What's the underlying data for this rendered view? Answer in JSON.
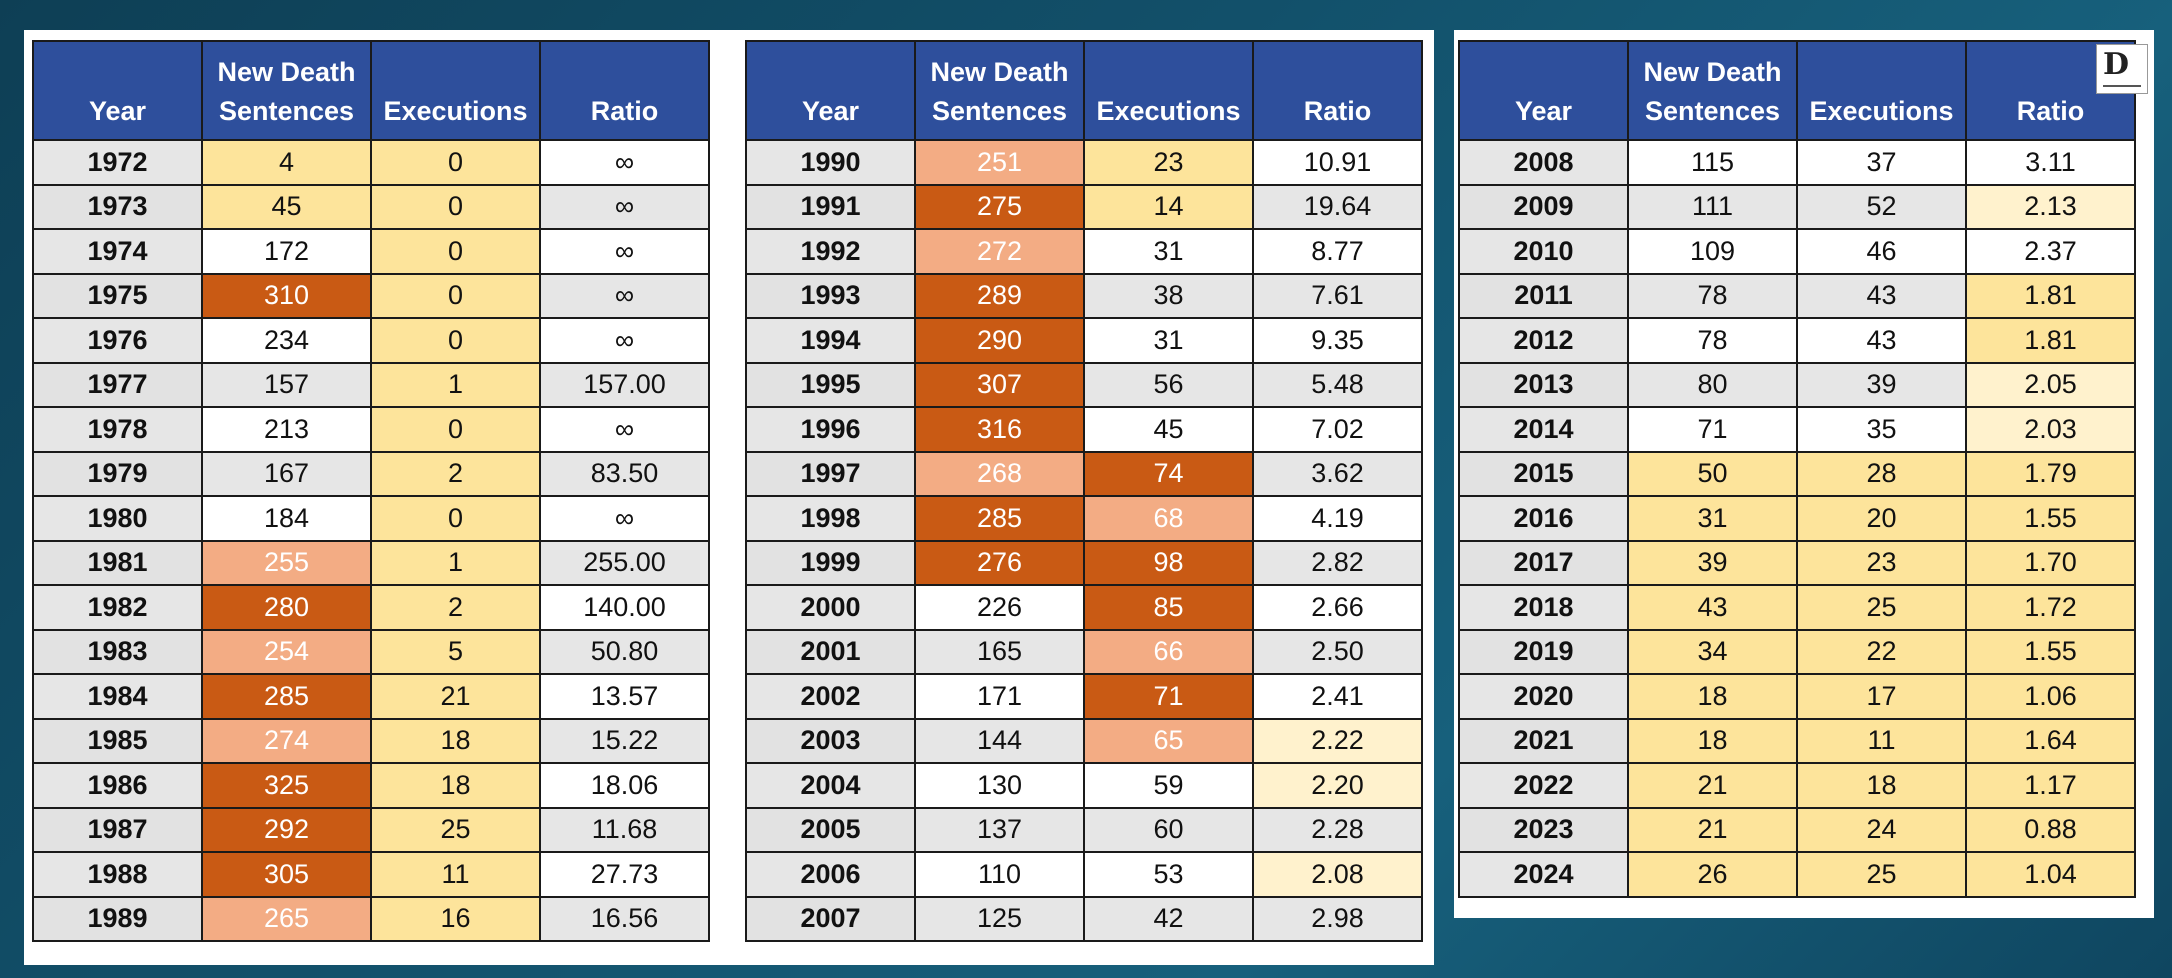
{
  "headers": {
    "year": "Year",
    "new_death_sentences": "New Death Sentences",
    "executions": "Executions",
    "ratio": "Ratio"
  },
  "colors": {
    "header_blue": "#2e4f9c",
    "dark_orange": "#c95a14",
    "light_orange": "#f3ac84",
    "yellow": "#fde49b",
    "light_yellow": "#fff2cd",
    "white": "#ffffff",
    "gray": "#e6e6e6"
  },
  "logo": {
    "icon": "dpi-logo-icon",
    "text": "D"
  },
  "tables": [
    {
      "rows": [
        {
          "year": "1972",
          "sentences": "4",
          "executions": "0",
          "ratio": "∞",
          "s_color": "y",
          "e_color": "y",
          "r_color": "w"
        },
        {
          "year": "1973",
          "sentences": "45",
          "executions": "0",
          "ratio": "∞",
          "s_color": "y",
          "e_color": "y",
          "r_color": "g"
        },
        {
          "year": "1974",
          "sentences": "172",
          "executions": "0",
          "ratio": "∞",
          "s_color": "w",
          "e_color": "y",
          "r_color": "w"
        },
        {
          "year": "1975",
          "sentences": "310",
          "executions": "0",
          "ratio": "∞",
          "s_color": "o",
          "e_color": "y",
          "r_color": "g"
        },
        {
          "year": "1976",
          "sentences": "234",
          "executions": "0",
          "ratio": "∞",
          "s_color": "w",
          "e_color": "y",
          "r_color": "w"
        },
        {
          "year": "1977",
          "sentences": "157",
          "executions": "1",
          "ratio": "157.00",
          "s_color": "g",
          "e_color": "y",
          "r_color": "g"
        },
        {
          "year": "1978",
          "sentences": "213",
          "executions": "0",
          "ratio": "∞",
          "s_color": "w",
          "e_color": "y",
          "r_color": "w"
        },
        {
          "year": "1979",
          "sentences": "167",
          "executions": "2",
          "ratio": "83.50",
          "s_color": "g",
          "e_color": "y",
          "r_color": "g"
        },
        {
          "year": "1980",
          "sentences": "184",
          "executions": "0",
          "ratio": "∞",
          "s_color": "w",
          "e_color": "y",
          "r_color": "w"
        },
        {
          "year": "1981",
          "sentences": "255",
          "executions": "1",
          "ratio": "255.00",
          "s_color": "p",
          "e_color": "y",
          "r_color": "g"
        },
        {
          "year": "1982",
          "sentences": "280",
          "executions": "2",
          "ratio": "140.00",
          "s_color": "o",
          "e_color": "y",
          "r_color": "w"
        },
        {
          "year": "1983",
          "sentences": "254",
          "executions": "5",
          "ratio": "50.80",
          "s_color": "p",
          "e_color": "y",
          "r_color": "g"
        },
        {
          "year": "1984",
          "sentences": "285",
          "executions": "21",
          "ratio": "13.57",
          "s_color": "o",
          "e_color": "y",
          "r_color": "w"
        },
        {
          "year": "1985",
          "sentences": "274",
          "executions": "18",
          "ratio": "15.22",
          "s_color": "p",
          "e_color": "y",
          "r_color": "g"
        },
        {
          "year": "1986",
          "sentences": "325",
          "executions": "18",
          "ratio": "18.06",
          "s_color": "o",
          "e_color": "y",
          "r_color": "w"
        },
        {
          "year": "1987",
          "sentences": "292",
          "executions": "25",
          "ratio": "11.68",
          "s_color": "o",
          "e_color": "y",
          "r_color": "g"
        },
        {
          "year": "1988",
          "sentences": "305",
          "executions": "11",
          "ratio": "27.73",
          "s_color": "o",
          "e_color": "y",
          "r_color": "w"
        },
        {
          "year": "1989",
          "sentences": "265",
          "executions": "16",
          "ratio": "16.56",
          "s_color": "p",
          "e_color": "y",
          "r_color": "g"
        }
      ]
    },
    {
      "rows": [
        {
          "year": "1990",
          "sentences": "251",
          "executions": "23",
          "ratio": "10.91",
          "s_color": "p",
          "e_color": "y",
          "r_color": "w"
        },
        {
          "year": "1991",
          "sentences": "275",
          "executions": "14",
          "ratio": "19.64",
          "s_color": "o",
          "e_color": "y",
          "r_color": "g"
        },
        {
          "year": "1992",
          "sentences": "272",
          "executions": "31",
          "ratio": "8.77",
          "s_color": "p",
          "e_color": "w",
          "r_color": "w"
        },
        {
          "year": "1993",
          "sentences": "289",
          "executions": "38",
          "ratio": "7.61",
          "s_color": "o",
          "e_color": "g",
          "r_color": "g"
        },
        {
          "year": "1994",
          "sentences": "290",
          "executions": "31",
          "ratio": "9.35",
          "s_color": "o",
          "e_color": "w",
          "r_color": "w"
        },
        {
          "year": "1995",
          "sentences": "307",
          "executions": "56",
          "ratio": "5.48",
          "s_color": "o",
          "e_color": "g",
          "r_color": "g"
        },
        {
          "year": "1996",
          "sentences": "316",
          "executions": "45",
          "ratio": "7.02",
          "s_color": "o",
          "e_color": "w",
          "r_color": "w"
        },
        {
          "year": "1997",
          "sentences": "268",
          "executions": "74",
          "ratio": "3.62",
          "s_color": "p",
          "e_color": "o",
          "r_color": "g"
        },
        {
          "year": "1998",
          "sentences": "285",
          "executions": "68",
          "ratio": "4.19",
          "s_color": "o",
          "e_color": "p",
          "r_color": "w"
        },
        {
          "year": "1999",
          "sentences": "276",
          "executions": "98",
          "ratio": "2.82",
          "s_color": "o",
          "e_color": "o",
          "r_color": "g"
        },
        {
          "year": "2000",
          "sentences": "226",
          "executions": "85",
          "ratio": "2.66",
          "s_color": "w",
          "e_color": "o",
          "r_color": "w"
        },
        {
          "year": "2001",
          "sentences": "165",
          "executions": "66",
          "ratio": "2.50",
          "s_color": "g",
          "e_color": "p",
          "r_color": "g"
        },
        {
          "year": "2002",
          "sentences": "171",
          "executions": "71",
          "ratio": "2.41",
          "s_color": "w",
          "e_color": "o",
          "r_color": "w"
        },
        {
          "year": "2003",
          "sentences": "144",
          "executions": "65",
          "ratio": "2.22",
          "s_color": "g",
          "e_color": "p",
          "r_color": "ly"
        },
        {
          "year": "2004",
          "sentences": "130",
          "executions": "59",
          "ratio": "2.20",
          "s_color": "w",
          "e_color": "w",
          "r_color": "ly"
        },
        {
          "year": "2005",
          "sentences": "137",
          "executions": "60",
          "ratio": "2.28",
          "s_color": "g",
          "e_color": "g",
          "r_color": "g"
        },
        {
          "year": "2006",
          "sentences": "110",
          "executions": "53",
          "ratio": "2.08",
          "s_color": "w",
          "e_color": "w",
          "r_color": "ly"
        },
        {
          "year": "2007",
          "sentences": "125",
          "executions": "42",
          "ratio": "2.98",
          "s_color": "g",
          "e_color": "g",
          "r_color": "g"
        }
      ]
    },
    {
      "rows": [
        {
          "year": "2008",
          "sentences": "115",
          "executions": "37",
          "ratio": "3.11",
          "s_color": "w",
          "e_color": "w",
          "r_color": "w"
        },
        {
          "year": "2009",
          "sentences": "111",
          "executions": "52",
          "ratio": "2.13",
          "s_color": "g",
          "e_color": "g",
          "r_color": "ly"
        },
        {
          "year": "2010",
          "sentences": "109",
          "executions": "46",
          "ratio": "2.37",
          "s_color": "w",
          "e_color": "w",
          "r_color": "w"
        },
        {
          "year": "2011",
          "sentences": "78",
          "executions": "43",
          "ratio": "1.81",
          "s_color": "g",
          "e_color": "g",
          "r_color": "y"
        },
        {
          "year": "2012",
          "sentences": "78",
          "executions": "43",
          "ratio": "1.81",
          "s_color": "w",
          "e_color": "w",
          "r_color": "y"
        },
        {
          "year": "2013",
          "sentences": "80",
          "executions": "39",
          "ratio": "2.05",
          "s_color": "g",
          "e_color": "g",
          "r_color": "ly"
        },
        {
          "year": "2014",
          "sentences": "71",
          "executions": "35",
          "ratio": "2.03",
          "s_color": "w",
          "e_color": "w",
          "r_color": "ly"
        },
        {
          "year": "2015",
          "sentences": "50",
          "executions": "28",
          "ratio": "1.79",
          "s_color": "y",
          "e_color": "y",
          "r_color": "y"
        },
        {
          "year": "2016",
          "sentences": "31",
          "executions": "20",
          "ratio": "1.55",
          "s_color": "y",
          "e_color": "y",
          "r_color": "y"
        },
        {
          "year": "2017",
          "sentences": "39",
          "executions": "23",
          "ratio": "1.70",
          "s_color": "y",
          "e_color": "y",
          "r_color": "y"
        },
        {
          "year": "2018",
          "sentences": "43",
          "executions": "25",
          "ratio": "1.72",
          "s_color": "y",
          "e_color": "y",
          "r_color": "y"
        },
        {
          "year": "2019",
          "sentences": "34",
          "executions": "22",
          "ratio": "1.55",
          "s_color": "y",
          "e_color": "y",
          "r_color": "y"
        },
        {
          "year": "2020",
          "sentences": "18",
          "executions": "17",
          "ratio": "1.06",
          "s_color": "y",
          "e_color": "y",
          "r_color": "y"
        },
        {
          "year": "2021",
          "sentences": "18",
          "executions": "11",
          "ratio": "1.64",
          "s_color": "y",
          "e_color": "y",
          "r_color": "y"
        },
        {
          "year": "2022",
          "sentences": "21",
          "executions": "18",
          "ratio": "1.17",
          "s_color": "y",
          "e_color": "y",
          "r_color": "y"
        },
        {
          "year": "2023",
          "sentences": "21",
          "executions": "24",
          "ratio": "0.88",
          "s_color": "y",
          "e_color": "y",
          "r_color": "y"
        },
        {
          "year": "2024",
          "sentences": "26",
          "executions": "25",
          "ratio": "1.04",
          "s_color": "y",
          "e_color": "y",
          "r_color": "y"
        }
      ]
    }
  ]
}
